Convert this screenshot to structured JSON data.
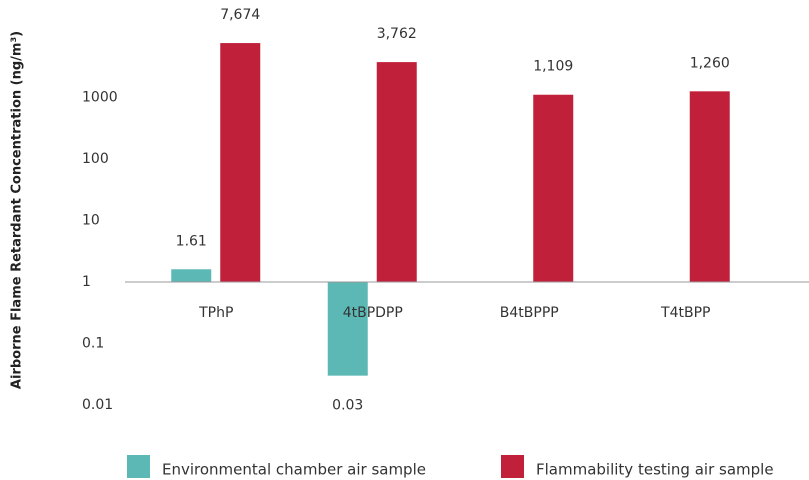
{
  "chart_data": {
    "type": "bar",
    "y_label": "Airborne Flame Retardant Concentration (ng/m³)",
    "categories": [
      "TPhP",
      "4tBPDPP",
      "B4tBPPP",
      "T4tBPP"
    ],
    "series": [
      {
        "name": "Environmental chamber air sample",
        "color": "#5bb8b4",
        "values": [
          1.61,
          0.03,
          null,
          null
        ],
        "value_labels": [
          "1.61",
          "0.03",
          null,
          null
        ]
      },
      {
        "name": "Flammability testing air sample",
        "color": "#c0203a",
        "values": [
          7674,
          3762,
          1109,
          1260
        ],
        "value_labels": [
          "7,674",
          "3,762",
          "1,109",
          "1,260"
        ]
      }
    ],
    "ylim": [
      0.01,
      10000
    ],
    "yticks": [
      0.01,
      0.1,
      1,
      10,
      100,
      1000
    ],
    "log_y": true,
    "grid": false,
    "legend": "bottom"
  }
}
